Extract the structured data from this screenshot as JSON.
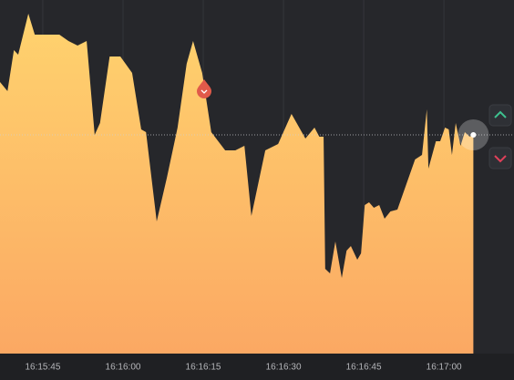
{
  "chart_data": {
    "type": "area",
    "x": [
      37.0,
      38.4,
      39.6,
      40.4,
      42.3,
      43.5,
      48.1,
      49.8,
      51.5,
      53.2,
      54.7,
      55.7,
      57.5,
      59.5,
      61.7,
      63.4,
      64.3,
      66.3,
      68.2,
      70.2,
      71.9,
      73.1,
      74.8,
      76.5,
      79.1,
      81.0,
      82.7,
      84.0,
      86.6,
      89.0,
      91.5,
      94.1,
      95.8,
      96.7,
      97.5,
      97.8,
      98.7,
      99.7,
      100.9,
      101.8,
      102.6,
      103.8,
      104.5,
      105.2,
      106.0,
      106.9,
      107.9,
      108.9,
      110.0,
      111.3,
      112.8,
      114.6,
      115.9,
      116.8,
      117.1,
      118.5,
      119.3,
      120.2,
      120.9,
      121.5,
      122.2,
      123.1,
      123.9,
      124.8,
      125.5
    ],
    "values": [
      298,
      288,
      333,
      328,
      373,
      350,
      350,
      343,
      338,
      343,
      240,
      253,
      326,
      326,
      308,
      246,
      243,
      145,
      193,
      248,
      318,
      343,
      308,
      243,
      223,
      223,
      228,
      151,
      223,
      230,
      263,
      236,
      248,
      238,
      238,
      93,
      88,
      123,
      83,
      113,
      118,
      103,
      110,
      163,
      166,
      160,
      163,
      148,
      156,
      158,
      183,
      213,
      218,
      268,
      203,
      233,
      233,
      248,
      246,
      218,
      253,
      228,
      243,
      238,
      240
    ],
    "xlim": [
      37,
      133.1
    ],
    "xticks": [
      {
        "value": 45,
        "label": "16:15:45"
      },
      {
        "value": 60,
        "label": "16:16:00"
      },
      {
        "value": 75,
        "label": "16:16:15"
      },
      {
        "value": 90,
        "label": "16:16:30"
      },
      {
        "value": 105,
        "label": "16:16:45"
      },
      {
        "value": 120,
        "label": "16:17:00"
      }
    ],
    "ylim": [
      0,
      388
    ],
    "grid": true,
    "color_top": "#ffd36e",
    "color_bottom": "#fba863"
  }
}
